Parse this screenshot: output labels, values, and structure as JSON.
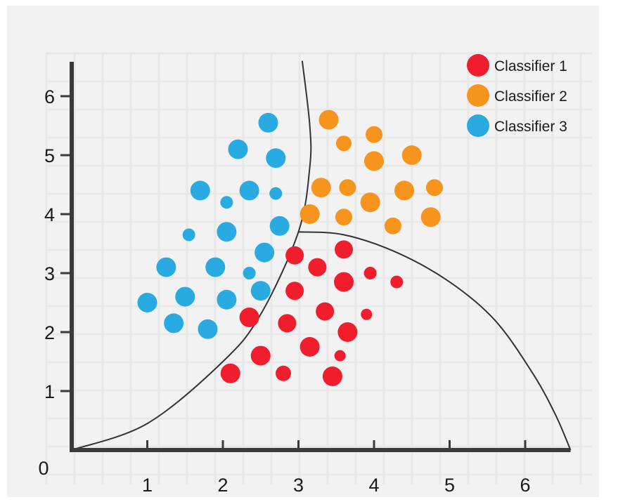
{
  "chart_data": {
    "type": "scatter",
    "xlim": [
      0,
      6.6
    ],
    "ylim": [
      0,
      6.6
    ],
    "xticks": [
      "1",
      "2",
      "3",
      "4",
      "5",
      "6"
    ],
    "yticks": [
      "1",
      "2",
      "3",
      "4",
      "5",
      "6"
    ],
    "origin_label": "0",
    "grid": true,
    "legend_position": "top-right",
    "boundaries": [
      {
        "description": "curve separating Classifier 3 from Classifier 1 and 2",
        "points": [
          [
            0,
            0
          ],
          [
            1,
            0.45
          ],
          [
            2,
            1.5
          ],
          [
            2.5,
            2.3
          ],
          [
            3,
            3.7
          ],
          [
            3.15,
            4.8
          ],
          [
            3.15,
            5.5
          ],
          [
            3.05,
            6.6
          ]
        ]
      },
      {
        "description": "arc bounding Classifier 1",
        "points": [
          [
            3,
            3.7
          ],
          [
            3.6,
            3.65
          ],
          [
            4.3,
            3.35
          ],
          [
            5,
            2.85
          ],
          [
            5.6,
            2.2
          ],
          [
            6.1,
            1.3
          ],
          [
            6.4,
            0.6
          ],
          [
            6.6,
            0
          ]
        ]
      }
    ],
    "series": [
      {
        "name": "Classifier 1",
        "color": "#f01e2c",
        "points": [
          [
            2.95,
            3.3,
            13
          ],
          [
            3.25,
            3.1,
            13
          ],
          [
            3.6,
            3.4,
            13
          ],
          [
            3.95,
            3.0,
            9
          ],
          [
            4.3,
            2.85,
            9
          ],
          [
            2.95,
            2.7,
            13
          ],
          [
            3.6,
            2.85,
            14
          ],
          [
            3.35,
            2.35,
            13
          ],
          [
            2.35,
            2.25,
            14
          ],
          [
            2.85,
            2.15,
            13
          ],
          [
            3.65,
            2.0,
            14
          ],
          [
            3.9,
            2.3,
            8
          ],
          [
            3.15,
            1.75,
            14
          ],
          [
            2.5,
            1.6,
            14
          ],
          [
            3.55,
            1.6,
            8
          ],
          [
            2.1,
            1.3,
            14
          ],
          [
            2.8,
            1.3,
            11
          ],
          [
            3.45,
            1.25,
            14
          ]
        ]
      },
      {
        "name": "Classifier 2",
        "color": "#f7941d",
        "points": [
          [
            3.4,
            5.6,
            14
          ],
          [
            4.0,
            5.35,
            12
          ],
          [
            3.6,
            5.2,
            11
          ],
          [
            4.0,
            4.9,
            14
          ],
          [
            4.5,
            5.0,
            14
          ],
          [
            3.3,
            4.45,
            14
          ],
          [
            3.65,
            4.45,
            12
          ],
          [
            4.4,
            4.4,
            14
          ],
          [
            4.8,
            4.45,
            12
          ],
          [
            3.95,
            4.2,
            14
          ],
          [
            3.15,
            4.0,
            14
          ],
          [
            3.6,
            3.95,
            12
          ],
          [
            4.25,
            3.8,
            12
          ],
          [
            4.75,
            3.95,
            14
          ]
        ]
      },
      {
        "name": "Classifier 3",
        "color": "#29abe2",
        "points": [
          [
            2.6,
            5.55,
            14
          ],
          [
            2.2,
            5.1,
            14
          ],
          [
            2.7,
            4.95,
            14
          ],
          [
            1.7,
            4.4,
            14
          ],
          [
            2.35,
            4.4,
            14
          ],
          [
            2.7,
            4.35,
            9
          ],
          [
            2.05,
            4.2,
            9
          ],
          [
            1.55,
            3.65,
            9
          ],
          [
            2.05,
            3.7,
            14
          ],
          [
            2.75,
            3.8,
            14
          ],
          [
            2.55,
            3.35,
            14
          ],
          [
            1.25,
            3.1,
            14
          ],
          [
            1.9,
            3.1,
            14
          ],
          [
            2.35,
            3.0,
            9
          ],
          [
            1.0,
            2.5,
            14
          ],
          [
            1.5,
            2.6,
            14
          ],
          [
            2.05,
            2.55,
            14
          ],
          [
            2.5,
            2.7,
            14
          ],
          [
            1.35,
            2.15,
            14
          ],
          [
            1.8,
            2.05,
            14
          ]
        ]
      }
    ]
  }
}
